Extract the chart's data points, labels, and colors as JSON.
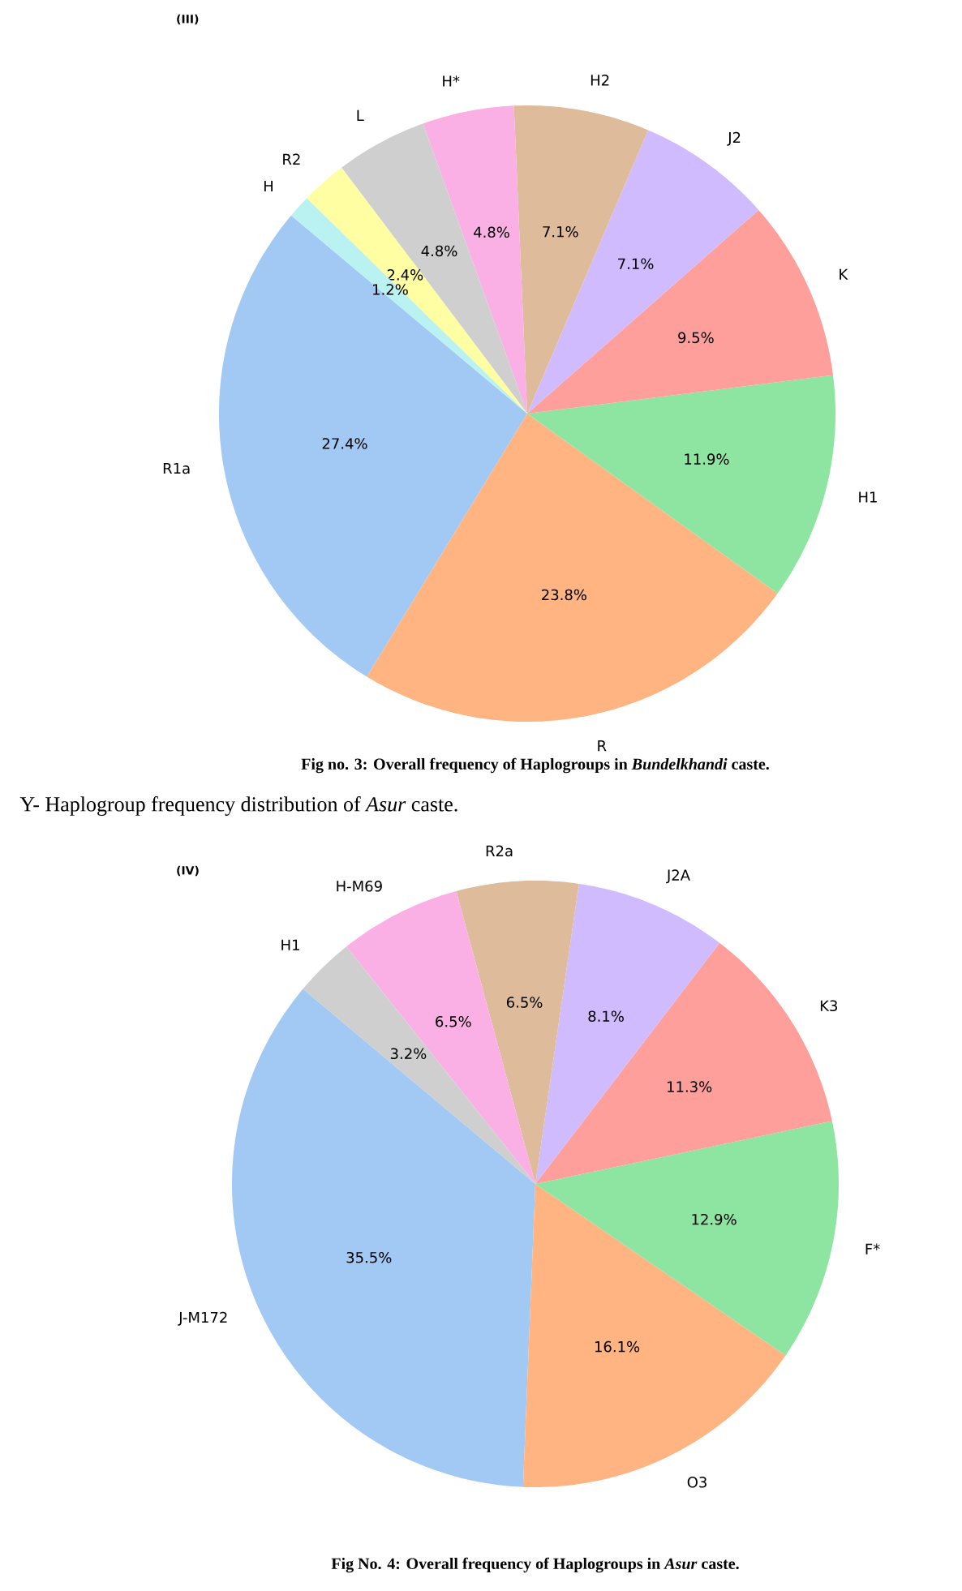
{
  "chart_data": [
    {
      "type": "pie",
      "title": "(III)",
      "categories": [
        "R1a",
        "R",
        "H1",
        "K",
        "J2",
        "H2",
        "H*",
        "L",
        "R2",
        "H"
      ],
      "values": [
        27.4,
        23.8,
        11.9,
        9.5,
        7.1,
        7.1,
        4.8,
        4.8,
        2.4,
        1.2
      ],
      "value_labels": [
        "27.4%",
        "23.8%",
        "11.9%",
        "9.5%",
        "7.1%",
        "7.1%",
        "4.8%",
        "4.8%",
        "2.4%",
        "1.2%"
      ],
      "colors": [
        "#a1c9f4",
        "#ffb482",
        "#8de5a1",
        "#ff9f9b",
        "#d0bbff",
        "#debb9b",
        "#fab0e4",
        "#cfcfcf",
        "#fffea3",
        "#b9f2f0"
      ],
      "annotations": [
        "**Fig no. 3: Overall frequency of Haplogroups in *Bundelkhandi* caste.**"
      ]
    },
    {
      "type": "pie",
      "title": "(IV)",
      "categories": [
        "J-M172",
        "O3",
        "F*",
        "K3",
        "J2A",
        "R2a",
        "H-M69",
        "H1"
      ],
      "values": [
        35.5,
        16.1,
        12.9,
        11.3,
        8.1,
        6.5,
        6.5,
        3.2
      ],
      "value_labels": [
        "35.5%",
        "16.1%",
        "12.9%",
        "11.3%",
        "8.1%",
        "6.5%",
        "6.5%",
        "3.2%"
      ],
      "colors": [
        "#a1c9f4",
        "#ffb482",
        "#8de5a1",
        "#ff9f9b",
        "#d0bbff",
        "#debb9b",
        "#fab0e4",
        "#cfcfcf"
      ],
      "annotations": [
        "Y- Haplogroup frequency distribution of *Asur* caste.",
        "**Fig No. 4: Overall frequency of Haplogroups in *Asur* caste.**"
      ]
    }
  ]
}
